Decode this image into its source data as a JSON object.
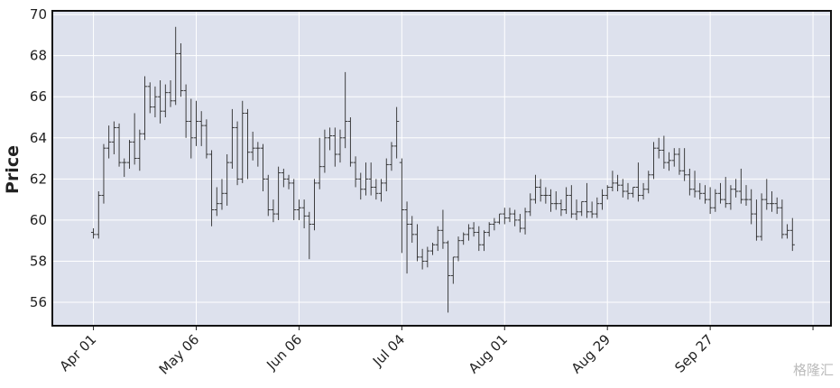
{
  "chart_data": {
    "type": "ohlc",
    "ylabel": "Price",
    "color": "#2b2b2b",
    "grid": true,
    "watermark": "格隆汇",
    "xlim": [
      -8,
      143.5
    ],
    "ylim": [
      54.86,
      70.18
    ],
    "yticks": [
      56,
      58,
      60,
      62,
      64,
      66,
      68,
      70
    ],
    "xticks": [
      {
        "value": 0,
        "label": "Apr 01"
      },
      {
        "value": 20,
        "label": "May 06"
      },
      {
        "value": 40,
        "label": "Jun 06"
      },
      {
        "value": 60,
        "label": "Jul 04"
      },
      {
        "value": 80,
        "label": "Aug 01"
      },
      {
        "value": 100,
        "label": "Aug 29"
      },
      {
        "value": 120,
        "label": "Sep 27"
      },
      {
        "value": 140,
        "label": ""
      }
    ],
    "open": [
      59.4,
      59.3,
      61.2,
      63.5,
      63.8,
      64.5,
      62.8,
      62.8,
      63.8,
      63.0,
      64.2,
      66.5,
      65.5,
      66.0,
      65.3,
      66.2,
      65.8,
      68.1,
      66.3,
      64.8,
      64.0,
      64.8,
      64.6,
      63.2,
      60.5,
      60.8,
      61.3,
      62.8,
      64.5,
      62.0,
      65.2,
      63.3,
      63.5,
      63.5,
      62.0,
      60.5,
      60.3,
      62.3,
      62.0,
      61.8,
      60.5,
      60.6,
      60.2,
      59.8,
      61.8,
      62.6,
      64.0,
      64.1,
      63.2,
      64.0,
      64.8,
      62.8,
      62.0,
      61.5,
      62.0,
      61.6,
      61.3,
      61.8,
      62.7,
      63.6,
      62.8,
      60.5,
      59.8,
      59.3,
      58.2,
      58.0,
      58.5,
      58.8,
      59.5,
      58.9,
      57.3,
      58.2,
      59.0,
      59.3,
      59.6,
      59.4,
      58.8,
      59.4,
      59.8,
      59.9,
      60.3,
      60.1,
      60.3,
      60.0,
      59.6,
      60.4,
      61.0,
      61.6,
      61.2,
      61.2,
      60.8,
      60.8,
      60.5,
      61.2,
      60.3,
      60.4,
      60.9,
      60.4,
      60.3,
      60.8,
      61.2,
      61.6,
      61.8,
      61.7,
      61.4,
      61.3,
      61.6,
      61.2,
      61.5,
      62.2,
      63.5,
      63.4,
      62.8,
      62.9,
      63.2,
      62.4,
      62.2,
      61.5,
      61.4,
      61.3,
      61.0,
      60.6,
      61.3,
      61.0,
      60.8,
      61.5,
      61.4,
      61.0,
      61.0,
      60.3,
      59.2,
      61.0,
      60.8,
      60.8,
      60.6,
      59.3,
      59.5
    ],
    "high": [
      59.6,
      61.4,
      63.7,
      64.6,
      64.8,
      64.7,
      63.0,
      63.9,
      65.2,
      64.4,
      67.0,
      66.7,
      66.5,
      66.8,
      66.6,
      66.8,
      69.4,
      68.6,
      66.6,
      65.9,
      65.8,
      65.3,
      64.9,
      63.4,
      61.6,
      62.0,
      63.2,
      65.4,
      64.8,
      65.8,
      65.4,
      64.3,
      63.8,
      63.7,
      62.2,
      61.0,
      62.6,
      62.5,
      62.2,
      62.0,
      61.0,
      61.0,
      60.4,
      62.0,
      64.0,
      64.4,
      64.5,
      64.5,
      64.4,
      67.2,
      65.0,
      63.1,
      62.3,
      62.8,
      62.8,
      62.0,
      62.0,
      63.0,
      63.8,
      65.5,
      63.0,
      60.9,
      60.2,
      59.8,
      58.6,
      58.7,
      58.9,
      59.7,
      60.5,
      59.0,
      58.2,
      59.2,
      59.4,
      59.8,
      59.9,
      59.7,
      59.5,
      59.9,
      60.1,
      60.3,
      60.6,
      60.6,
      60.5,
      60.3,
      60.6,
      61.3,
      62.2,
      62.0,
      61.6,
      61.5,
      61.4,
      61.0,
      61.6,
      61.7,
      61.0,
      60.9,
      61.8,
      60.9,
      61.1,
      61.5,
      61.7,
      62.4,
      62.2,
      62.0,
      61.8,
      61.6,
      62.8,
      61.8,
      62.4,
      63.8,
      64.0,
      64.1,
      63.3,
      63.5,
      63.5,
      63.5,
      62.5,
      62.4,
      61.8,
      61.7,
      61.6,
      61.5,
      61.8,
      62.1,
      61.7,
      62.0,
      62.5,
      61.7,
      61.5,
      61.0,
      61.3,
      62.0,
      61.4,
      61.1,
      61.0,
      59.8,
      60.1
    ],
    "low": [
      59.1,
      59.1,
      60.8,
      63.0,
      63.2,
      62.6,
      62.1,
      62.5,
      62.7,
      62.4,
      63.9,
      65.2,
      65.0,
      64.7,
      65.0,
      65.5,
      65.6,
      66.0,
      64.0,
      63.0,
      63.6,
      63.6,
      63.0,
      59.7,
      60.2,
      60.5,
      60.7,
      62.5,
      61.7,
      61.8,
      62.0,
      62.9,
      62.6,
      61.4,
      60.2,
      59.9,
      60.0,
      61.6,
      61.5,
      60.0,
      60.0,
      59.6,
      58.1,
      59.5,
      61.5,
      62.3,
      63.4,
      62.6,
      62.8,
      63.5,
      62.6,
      61.6,
      61.0,
      61.2,
      61.2,
      61.0,
      60.9,
      61.4,
      62.4,
      63.0,
      58.4,
      57.4,
      58.9,
      58.0,
      57.6,
      57.7,
      58.3,
      58.5,
      58.6,
      55.5,
      56.9,
      58.0,
      58.8,
      59.0,
      59.2,
      58.5,
      58.5,
      59.2,
      59.5,
      59.8,
      59.8,
      59.9,
      59.7,
      59.4,
      59.3,
      60.2,
      60.8,
      60.9,
      60.8,
      60.4,
      60.5,
      60.2,
      60.3,
      60.1,
      60.0,
      60.2,
      60.1,
      60.1,
      60.1,
      60.5,
      61.0,
      61.4,
      61.4,
      61.1,
      61.0,
      61.1,
      60.9,
      61.0,
      61.3,
      62.0,
      63.0,
      62.5,
      62.4,
      62.6,
      62.2,
      61.9,
      61.2,
      61.1,
      61.0,
      60.8,
      60.3,
      60.4,
      60.8,
      60.6,
      60.5,
      61.1,
      60.8,
      60.7,
      59.8,
      59.0,
      59.0,
      60.5,
      60.4,
      60.3,
      59.1,
      59.1,
      58.5
    ],
    "close": [
      59.3,
      61.2,
      63.5,
      63.8,
      64.5,
      62.8,
      62.8,
      63.8,
      63.0,
      64.2,
      66.5,
      65.5,
      66.0,
      65.3,
      66.2,
      65.8,
      68.1,
      66.3,
      64.8,
      64.0,
      64.8,
      64.6,
      63.2,
      60.5,
      60.8,
      61.3,
      62.8,
      64.5,
      62.0,
      65.2,
      63.3,
      63.5,
      63.5,
      62.0,
      60.5,
      60.3,
      62.3,
      62.0,
      61.8,
      60.5,
      60.6,
      60.2,
      59.8,
      61.8,
      62.6,
      64.0,
      64.1,
      63.2,
      64.0,
      64.8,
      62.8,
      62.0,
      61.5,
      62.0,
      61.6,
      61.3,
      61.8,
      62.7,
      63.6,
      64.8,
      60.5,
      59.8,
      59.3,
      58.2,
      58.0,
      58.5,
      58.8,
      59.5,
      58.9,
      57.3,
      58.2,
      59.0,
      59.3,
      59.6,
      59.4,
      58.8,
      59.4,
      59.8,
      59.9,
      60.3,
      60.1,
      60.3,
      60.0,
      59.6,
      60.4,
      61.0,
      61.6,
      61.2,
      61.2,
      60.8,
      60.8,
      60.5,
      61.2,
      60.3,
      60.4,
      60.9,
      60.4,
      60.3,
      60.8,
      61.2,
      61.6,
      61.8,
      61.7,
      61.4,
      61.3,
      61.6,
      61.2,
      61.5,
      62.2,
      63.5,
      63.4,
      62.8,
      62.9,
      63.2,
      62.4,
      62.2,
      61.5,
      61.4,
      61.3,
      61.0,
      60.6,
      61.3,
      61.0,
      60.8,
      61.5,
      61.4,
      61.0,
      61.0,
      60.3,
      59.2,
      61.0,
      60.8,
      60.8,
      60.6,
      59.3,
      59.5,
      58.8
    ]
  }
}
